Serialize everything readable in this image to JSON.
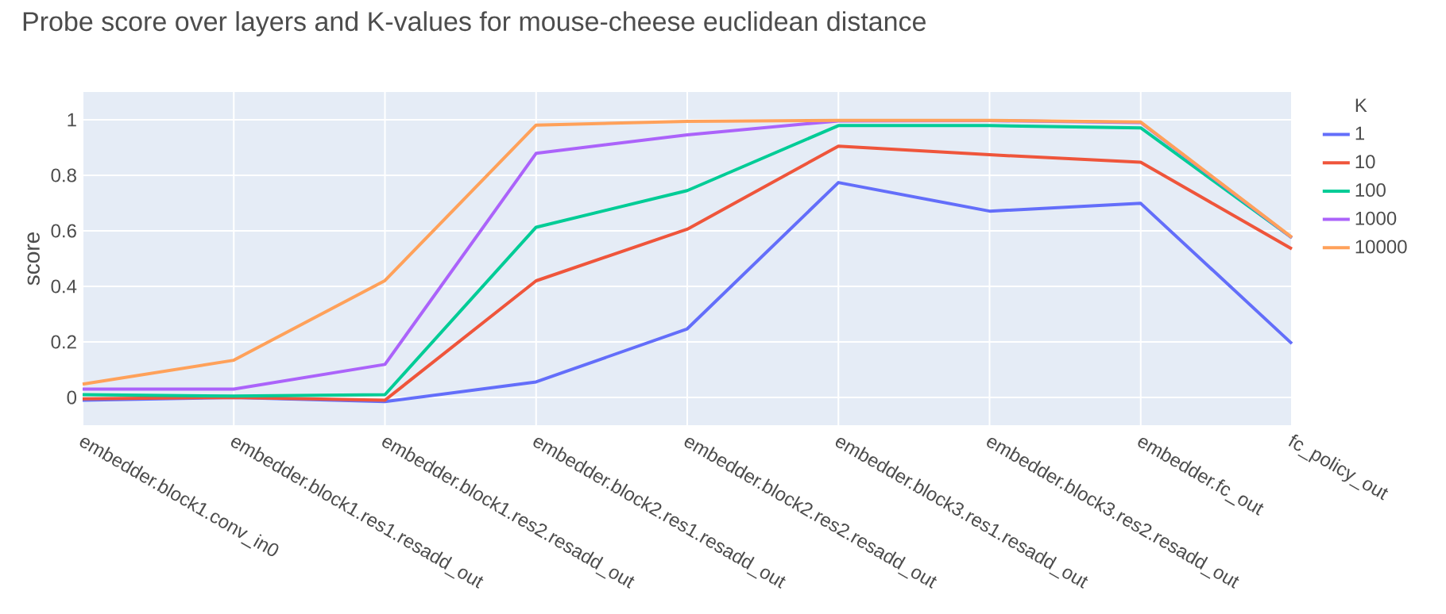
{
  "chart_data": {
    "type": "line",
    "title": "Probe score over layers and K-values for mouse-cheese euclidean distance",
    "ylabel": "score",
    "legend_title": "K",
    "legend": "top right",
    "grid": true,
    "categories": [
      "embedder.block1.conv_in0",
      "embedder.block1.res1.resadd_out",
      "embedder.block1.res2.resadd_out",
      "embedder.block2.res1.resadd_out",
      "embedder.block2.res2.resadd_out",
      "embedder.block3.res1.resadd_out",
      "embedder.block3.res2.resadd_out",
      "embedder.fc_out",
      "fc_policy_out"
    ],
    "ylim": [
      -0.1,
      1.1
    ],
    "yticks": [
      0,
      0.2,
      0.4,
      0.6,
      0.8,
      1
    ],
    "series": [
      {
        "name": "1",
        "color": "#636efa",
        "values": [
          -0.01,
          0.0,
          -0.015,
          0.056,
          0.247,
          0.774,
          0.671,
          0.699,
          0.194
        ]
      },
      {
        "name": "10",
        "color": "#ef553b",
        "values": [
          -0.005,
          0.0,
          -0.01,
          0.42,
          0.606,
          0.905,
          0.874,
          0.847,
          0.535
        ]
      },
      {
        "name": "100",
        "color": "#00cc96",
        "values": [
          0.01,
          0.005,
          0.01,
          0.613,
          0.745,
          0.979,
          0.979,
          0.971,
          0.575
        ]
      },
      {
        "name": "1000",
        "color": "#ab63fa",
        "values": [
          0.03,
          0.03,
          0.119,
          0.879,
          0.946,
          0.996,
          0.997,
          0.99,
          0.575
        ]
      },
      {
        "name": "10000",
        "color": "#ffa15a",
        "values": [
          0.048,
          0.134,
          0.421,
          0.981,
          0.994,
          0.998,
          0.998,
          0.992,
          0.577
        ]
      }
    ]
  }
}
